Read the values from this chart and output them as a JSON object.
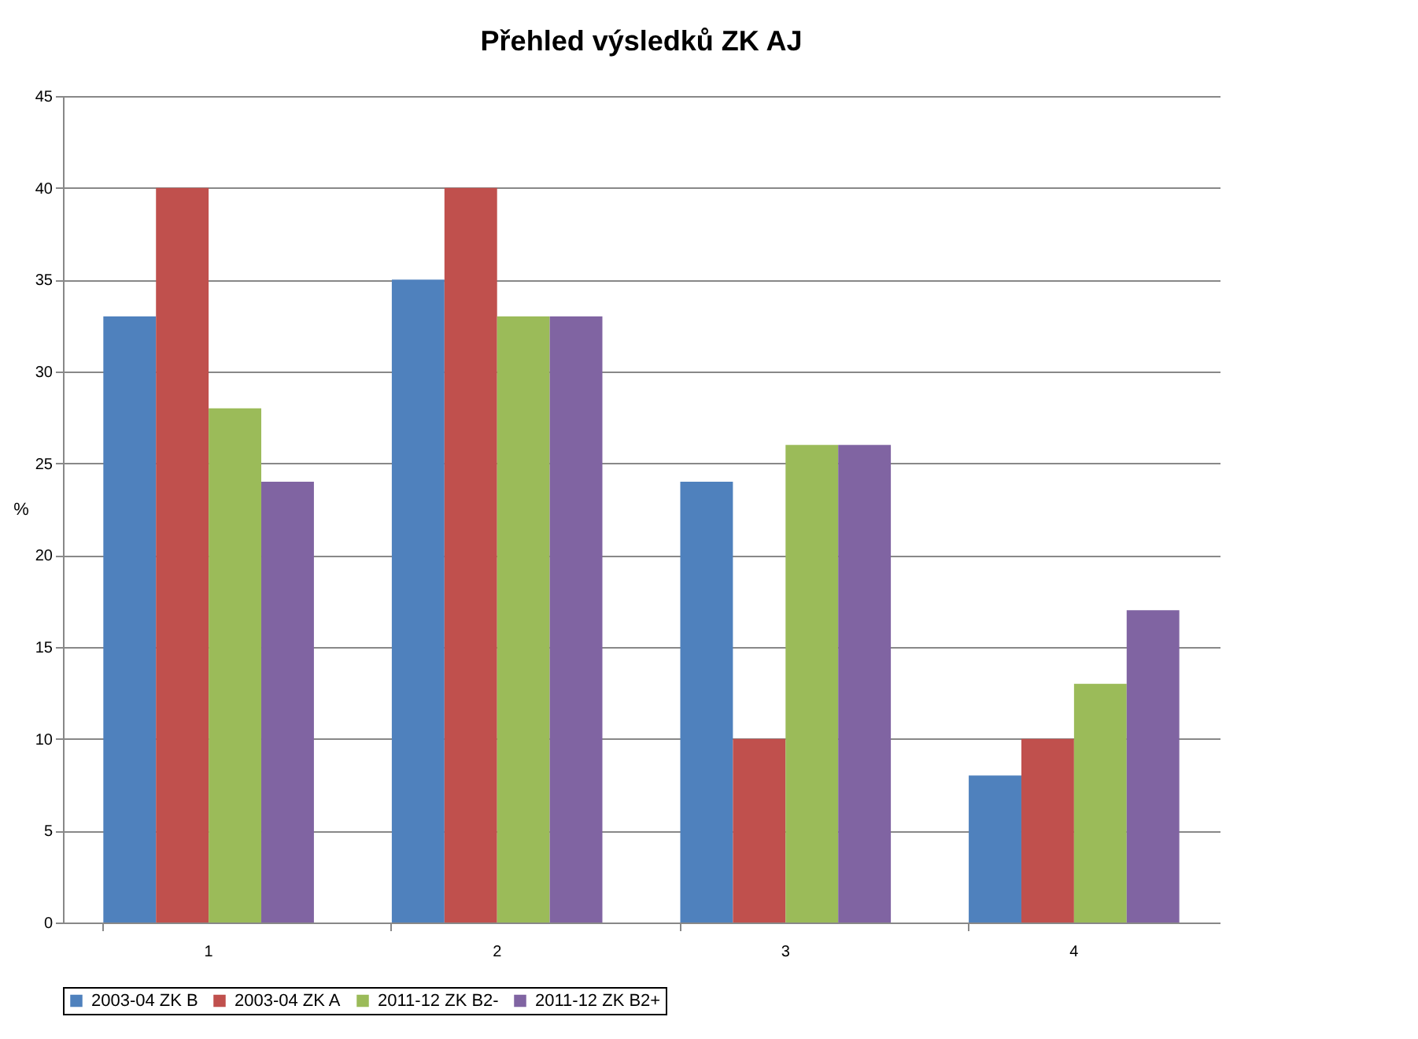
{
  "chart_data": {
    "type": "bar",
    "title": "Přehled výsledků ZK AJ",
    "ylabel": "%",
    "categories": [
      "1",
      "2",
      "3",
      "4"
    ],
    "series": [
      {
        "name": "2003-04 ZK B",
        "color": "#4f81bd",
        "values": [
          33,
          35,
          24,
          8
        ]
      },
      {
        "name": "2003-04 ZK A",
        "color": "#c0504d",
        "values": [
          40,
          40,
          10,
          10
        ]
      },
      {
        "name": "2011-12 ZK B2-",
        "color": "#9bbb59",
        "values": [
          28,
          33,
          26,
          13
        ]
      },
      {
        "name": "2011-12 ZK B2+",
        "color": "#8064a2",
        "values": [
          24,
          33,
          26,
          17
        ]
      }
    ],
    "ylim": [
      0,
      45
    ],
    "yticks": [
      0,
      5,
      10,
      15,
      20,
      25,
      30,
      35,
      40,
      45
    ],
    "grid": "y",
    "legend": "bottom"
  }
}
